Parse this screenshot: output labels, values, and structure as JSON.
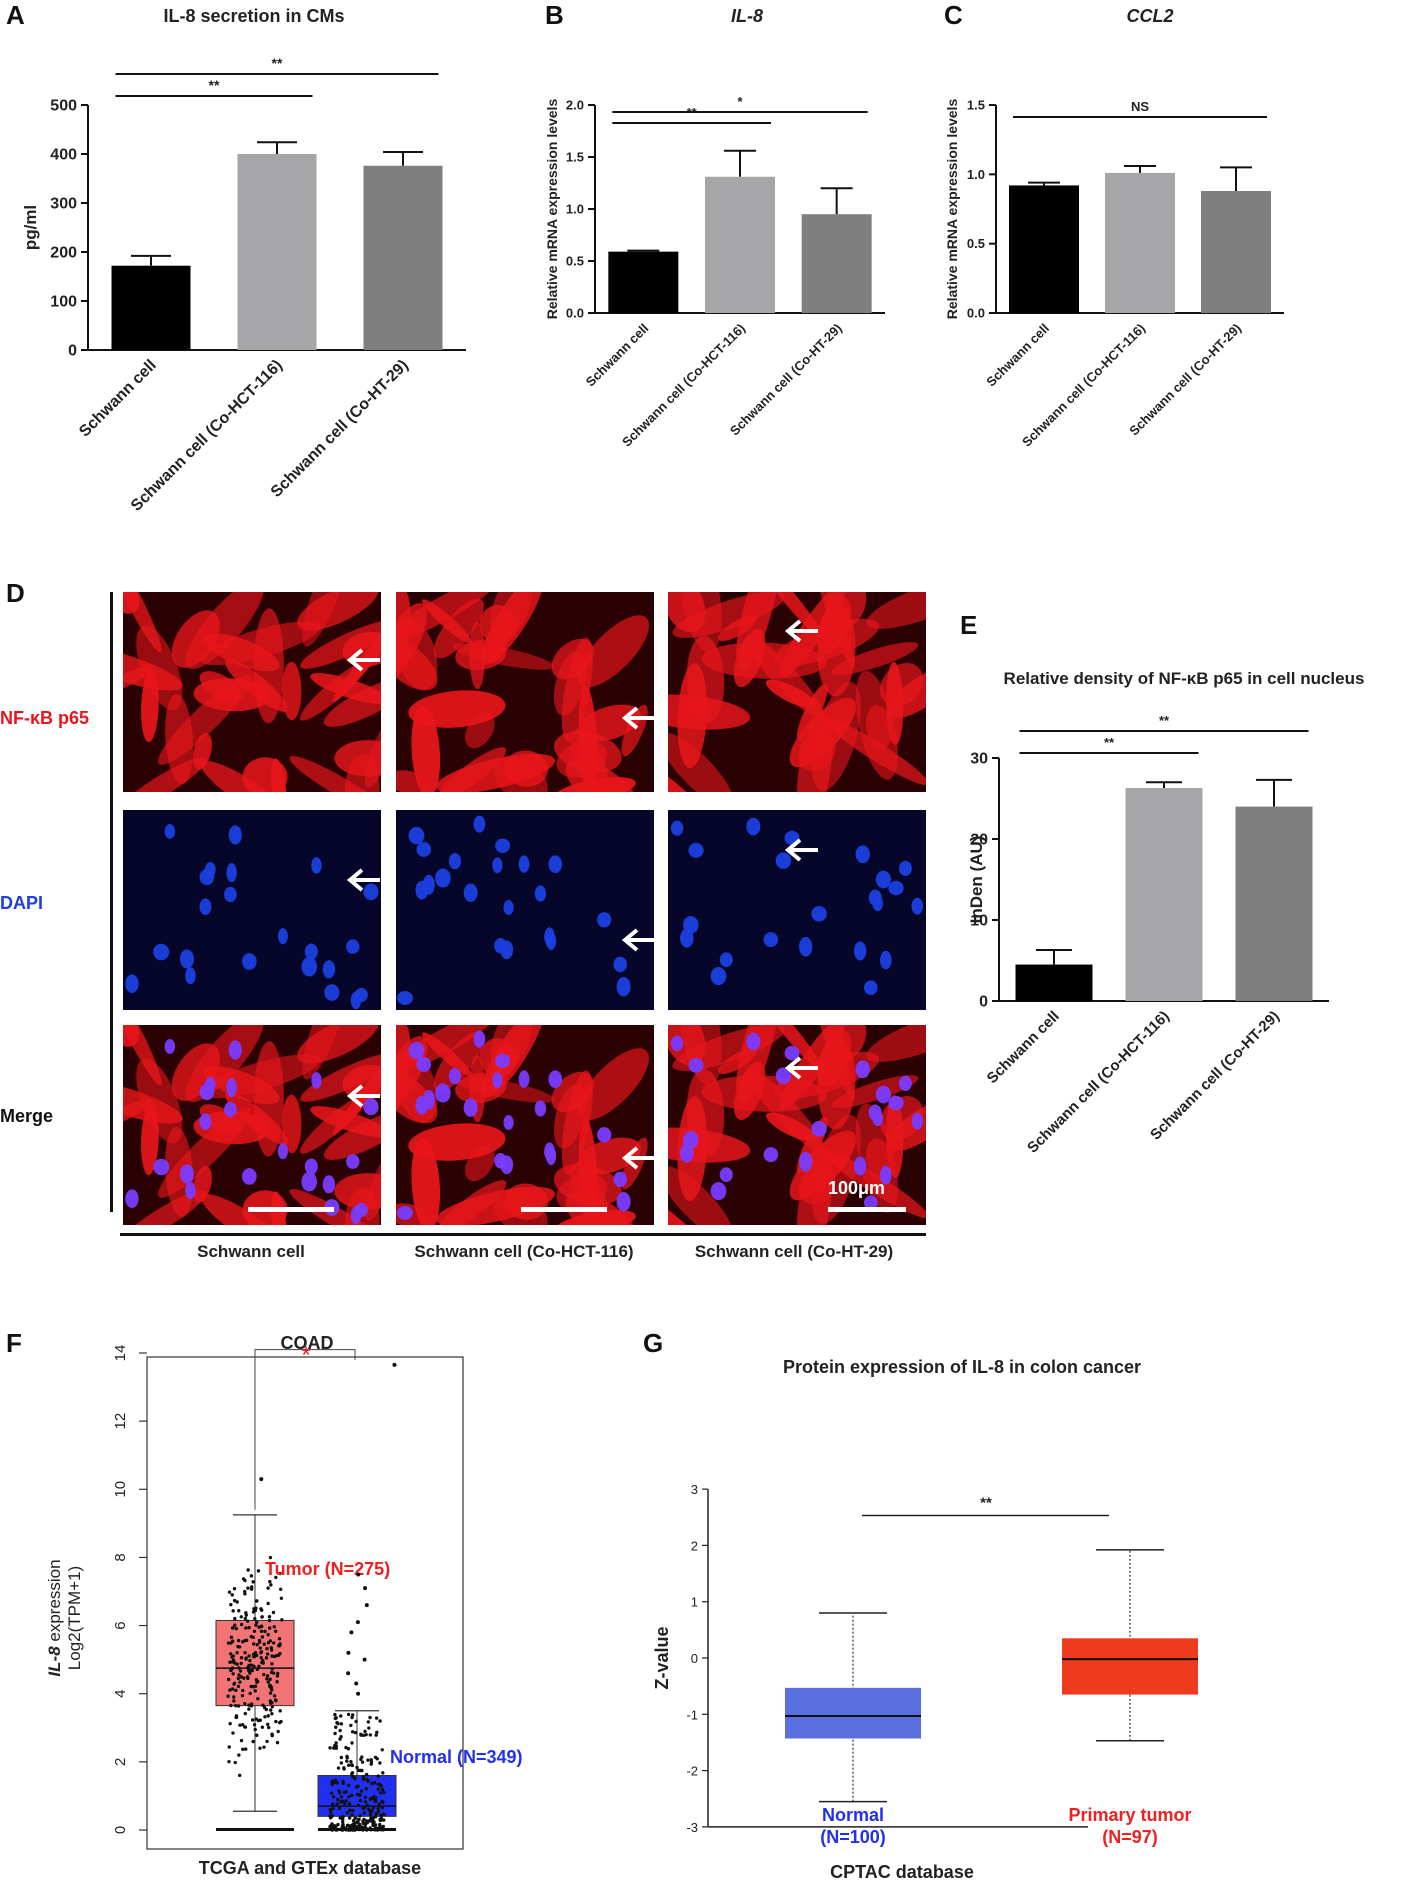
{
  "panels": {
    "A": {
      "label": "A"
    },
    "B": {
      "label": "B"
    },
    "C": {
      "label": "C"
    },
    "D": {
      "label": "D",
      "rows": [
        "NF-κB p65",
        "DAPI",
        "Merge"
      ],
      "columns": [
        "Schwann cell",
        "Schwann cell (Co-HCT-116)",
        "Schwann cell (Co-HT-29)"
      ],
      "scale_bar": "100μm"
    },
    "E": {
      "label": "E"
    },
    "F": {
      "label": "F"
    },
    "G": {
      "label": "G"
    }
  },
  "colors": {
    "black_bar": "#000000",
    "light_gray_bar": "#a6a6a8",
    "dark_gray_bar": "#7f7f7f",
    "nfkb_red": "#e8161b",
    "dapi_blue": "#1b3fe0",
    "tumor_red": "#f27474",
    "normal_blue": "#2030ee",
    "cptac_blue": "#5a6ee0",
    "cptac_red": "#ee3a1d"
  },
  "chart_data": [
    {
      "id": "A",
      "type": "bar",
      "title": "IL-8 secretion in CMs",
      "categories": [
        "Schwann cell",
        "Schwann cell (Co-HCT-116)",
        "Schwann cell (Co-HT-29)"
      ],
      "values": [
        172,
        400,
        376
      ],
      "errors": [
        20,
        24,
        28
      ],
      "ylabel": "pg/ml",
      "ylim": [
        0,
        500
      ],
      "yticks": [
        0,
        100,
        200,
        300,
        400,
        500
      ],
      "significance": [
        {
          "from": 0,
          "to": 1,
          "text": "**"
        },
        {
          "from": 0,
          "to": 2,
          "text": "**"
        }
      ]
    },
    {
      "id": "B",
      "type": "bar",
      "title": "IL-8",
      "categories": [
        "Schwann cell",
        "Schwann cell (Co-HCT-116)",
        "Schwann cell (Co-HT-29)"
      ],
      "values": [
        0.59,
        1.31,
        0.95
      ],
      "errors": [
        0.01,
        0.25,
        0.25
      ],
      "ylabel": "Relative mRNA expression levels",
      "ylim": [
        0,
        2.0
      ],
      "yticks": [
        "0.0",
        "0.5",
        "1.0",
        "1.5",
        "2.0"
      ],
      "significance": [
        {
          "from": 0,
          "to": 1,
          "text": "**"
        },
        {
          "from": 0,
          "to": 2,
          "text": "*"
        }
      ]
    },
    {
      "id": "C",
      "type": "bar",
      "title": "CCL2",
      "categories": [
        "Schwann cell",
        "Schwann cell (Co-HCT-116)",
        "Schwann cell (Co-HT-29)"
      ],
      "values": [
        0.92,
        1.01,
        0.88
      ],
      "errors": [
        0.02,
        0.05,
        0.17
      ],
      "ylabel": "Relative mRNA expression levels",
      "ylim": [
        0,
        1.5
      ],
      "yticks": [
        "0.0",
        "0.5",
        "1.0",
        "1.5"
      ],
      "significance": [
        {
          "from": 0,
          "to": 2,
          "text": "NS"
        }
      ]
    },
    {
      "id": "E",
      "type": "bar",
      "title": "Relative density of NF-κB p65 in cell nucleus",
      "categories": [
        "Schwann cell",
        "Schwann cell (Co-HCT-116)",
        "Schwann cell (Co-HT-29)"
      ],
      "values": [
        4.5,
        26.3,
        24.0
      ],
      "errors": [
        1.8,
        0.7,
        3.3
      ],
      "ylabel": "InDen (AU)",
      "ylim": [
        0,
        30
      ],
      "yticks": [
        0,
        10,
        20,
        30
      ],
      "significance": [
        {
          "from": 0,
          "to": 1,
          "text": "**"
        },
        {
          "from": 0,
          "to": 2,
          "text": "**"
        }
      ]
    },
    {
      "id": "F",
      "type": "box",
      "title": "COAD",
      "xlabel": "TCGA and GTEx database",
      "ylabel_gene": "IL-8",
      "ylabel_line1_suffix": " expression",
      "ylabel_line2": "Log2(TPM+1)",
      "ylim": [
        0,
        14
      ],
      "yticks": [
        0,
        2,
        4,
        6,
        8,
        10,
        12,
        14
      ],
      "groups": [
        {
          "name": "Tumor (N=275)",
          "q1": 3.65,
          "median": 4.75,
          "q3": 6.15,
          "whisker_low": 0.55,
          "whisker_high": 9.25,
          "outliers_high": [
            10.3
          ],
          "n": 275
        },
        {
          "name": "Normal (N=349)",
          "q1": 0.4,
          "median": 0.7,
          "q3": 1.6,
          "whisker_low": 0.0,
          "whisker_high": 3.5,
          "outliers_high": [
            4.0,
            4.3,
            4.6,
            5.0,
            5.2,
            5.8,
            6.1,
            6.6,
            7.1,
            7.5,
            13.65
          ],
          "n": 349
        }
      ],
      "significance": "*"
    },
    {
      "id": "G",
      "type": "box",
      "title": "Protein expression of IL-8 in colon cancer",
      "xlabel": "CPTAC database",
      "ylabel": "Z-value",
      "ylim": [
        -3,
        3
      ],
      "yticks": [
        -3,
        -2,
        -1,
        0,
        1,
        2,
        3
      ],
      "groups": [
        {
          "name": "Normal",
          "n_label": "(N=100)",
          "q1": -1.43,
          "median": -1.03,
          "q3": -0.53,
          "whisker_low": -2.55,
          "whisker_high": 0.8
        },
        {
          "name": "Primary tumor",
          "n_label": "(N=97)",
          "q1": -0.65,
          "median": -0.02,
          "q3": 0.35,
          "whisker_low": -1.47,
          "whisker_high": 1.92
        }
      ],
      "significance": "**"
    }
  ]
}
